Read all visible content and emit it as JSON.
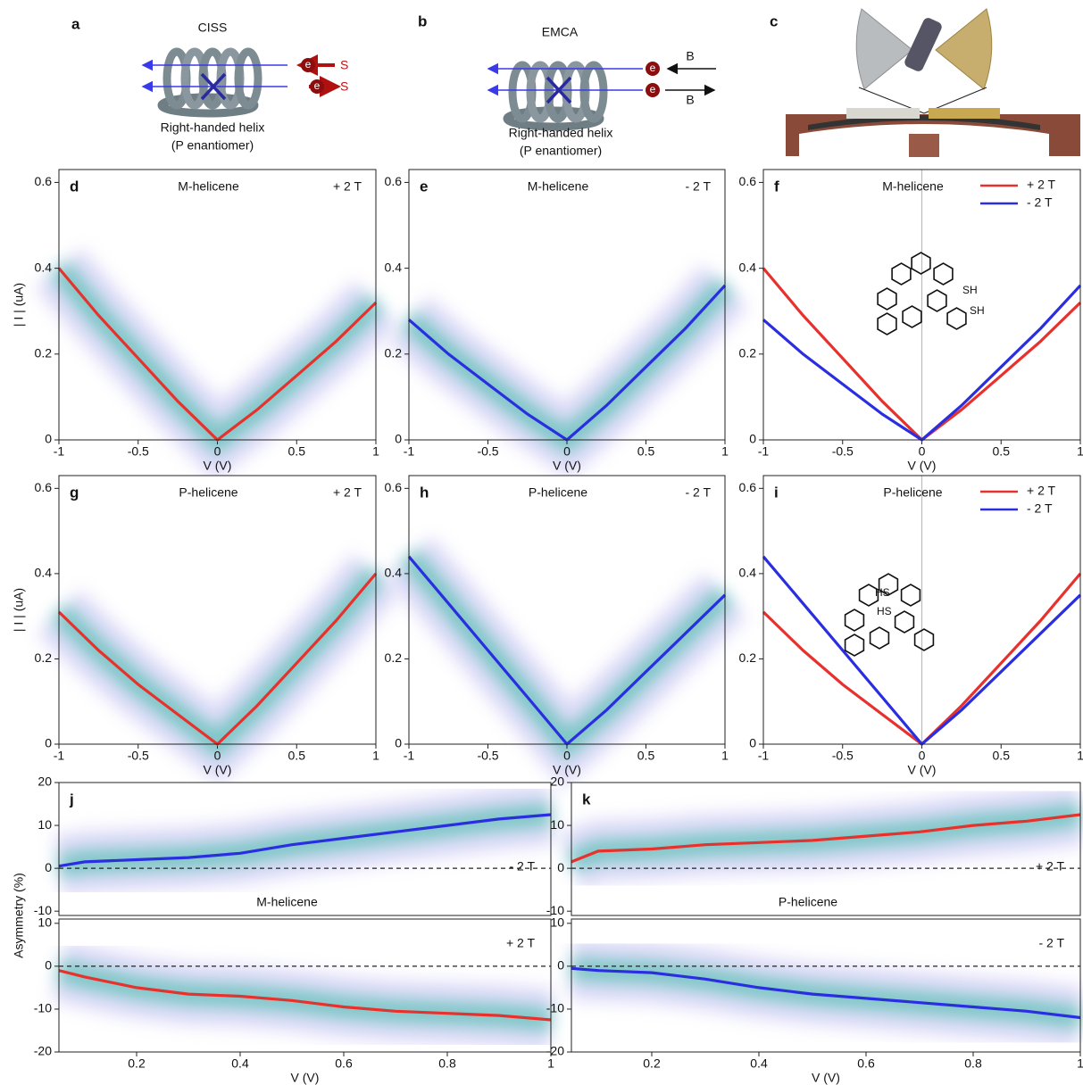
{
  "diagrams": [
    {
      "label": "a",
      "title": "CISS",
      "texts": [
        "e",
        "S",
        "e",
        "S"
      ],
      "caption": [
        "Right-handed helix",
        "(P enantiomer)"
      ]
    },
    {
      "label": "b",
      "title": "EMCA",
      "texts": [
        "e",
        "B",
        "e",
        "B"
      ],
      "caption": [
        "Right-handed helix",
        "(P enantiomer)"
      ]
    },
    {
      "label": "c"
    }
  ],
  "chart_data": [
    {
      "type": "line",
      "label": "d",
      "title": "M-helicene",
      "field": "+ 2 T",
      "xlabel": "V (V)",
      "ylabel": "| I | (uA)",
      "density": true,
      "x": [
        -1,
        -0.75,
        -0.5,
        -0.25,
        0,
        0.25,
        0.5,
        0.75,
        1
      ],
      "xlim": [
        -1,
        1
      ],
      "ylim": [
        0,
        0.63
      ],
      "xticks": [
        -1,
        -0.5,
        0,
        0.5,
        1
      ],
      "yticks": [
        0,
        0.2,
        0.4,
        0.6
      ],
      "series": [
        {
          "color": "#e8312c",
          "values": [
            0.4,
            0.29,
            0.19,
            0.09,
            0,
            0.07,
            0.15,
            0.23,
            0.32
          ]
        }
      ]
    },
    {
      "type": "line",
      "label": "e",
      "title": "M-helicene",
      "field": "- 2 T",
      "xlabel": "V (V)",
      "density": true,
      "x": [
        -1,
        -0.75,
        -0.5,
        -0.25,
        0,
        0.25,
        0.5,
        0.75,
        1
      ],
      "xlim": [
        -1,
        1
      ],
      "ylim": [
        0,
        0.63
      ],
      "xticks": [
        -1,
        -0.5,
        0,
        0.5,
        1
      ],
      "yticks": [
        0,
        0.2,
        0.4,
        0.6
      ],
      "series": [
        {
          "color": "#2a2ee0",
          "values": [
            0.28,
            0.2,
            0.13,
            0.06,
            0,
            0.08,
            0.17,
            0.26,
            0.36
          ]
        }
      ]
    },
    {
      "type": "line",
      "label": "f",
      "title": "M-helicene",
      "xlabel": "V (V)",
      "zero_line": "x",
      "legend": "upper right",
      "annotations": [
        "SH",
        "SH"
      ],
      "x": [
        -1,
        -0.75,
        -0.5,
        -0.25,
        0,
        0.25,
        0.5,
        0.75,
        1
      ],
      "xlim": [
        -1,
        1
      ],
      "ylim": [
        0,
        0.63
      ],
      "xticks": [
        -1,
        -0.5,
        0,
        0.5,
        1
      ],
      "yticks": [
        0,
        0.2,
        0.4,
        0.6
      ],
      "series": [
        {
          "name": "+ 2 T",
          "color": "#e8312c",
          "values": [
            0.4,
            0.29,
            0.19,
            0.09,
            0,
            0.07,
            0.15,
            0.23,
            0.32
          ]
        },
        {
          "name": "- 2 T",
          "color": "#2a2ee0",
          "values": [
            0.28,
            0.2,
            0.13,
            0.06,
            0,
            0.08,
            0.17,
            0.26,
            0.36
          ]
        }
      ]
    },
    {
      "type": "line",
      "label": "g",
      "title": "P-helicene",
      "field": "+ 2 T",
      "xlabel": "V (V)",
      "ylabel": "| I | (uA)",
      "density": true,
      "x": [
        -1,
        -0.75,
        -0.5,
        -0.25,
        0,
        0.25,
        0.5,
        0.75,
        1
      ],
      "xlim": [
        -1,
        1
      ],
      "ylim": [
        0,
        0.63
      ],
      "xticks": [
        -1,
        -0.5,
        0,
        0.5,
        1
      ],
      "yticks": [
        0,
        0.2,
        0.4,
        0.6
      ],
      "series": [
        {
          "color": "#e8312c",
          "values": [
            0.31,
            0.22,
            0.14,
            0.07,
            0,
            0.09,
            0.19,
            0.29,
            0.4
          ]
        }
      ]
    },
    {
      "type": "line",
      "label": "h",
      "title": "P-helicene",
      "field": "- 2 T",
      "xlabel": "V (V)",
      "density": true,
      "x": [
        -1,
        -0.75,
        -0.5,
        -0.25,
        0,
        0.25,
        0.5,
        0.75,
        1
      ],
      "xlim": [
        -1,
        1
      ],
      "ylim": [
        0,
        0.63
      ],
      "xticks": [
        -1,
        -0.5,
        0,
        0.5,
        1
      ],
      "yticks": [
        0,
        0.2,
        0.4,
        0.6
      ],
      "series": [
        {
          "color": "#2a2ee0",
          "values": [
            0.44,
            0.33,
            0.22,
            0.11,
            0,
            0.08,
            0.17,
            0.26,
            0.35
          ]
        }
      ]
    },
    {
      "type": "line",
      "label": "i",
      "title": "P-helicene",
      "xlabel": "V (V)",
      "zero_line": "x",
      "legend": "upper right",
      "annotations": [
        "HS",
        "HS"
      ],
      "x": [
        -1,
        -0.75,
        -0.5,
        -0.25,
        0,
        0.25,
        0.5,
        0.75,
        1
      ],
      "xlim": [
        -1,
        1
      ],
      "ylim": [
        0,
        0.63
      ],
      "xticks": [
        -1,
        -0.5,
        0,
        0.5,
        1
      ],
      "yticks": [
        0,
        0.2,
        0.4,
        0.6
      ],
      "series": [
        {
          "name": "+ 2 T",
          "color": "#e8312c",
          "values": [
            0.31,
            0.22,
            0.14,
            0.07,
            0,
            0.09,
            0.19,
            0.29,
            0.4
          ]
        },
        {
          "name": "- 2 T",
          "color": "#2a2ee0",
          "values": [
            0.44,
            0.33,
            0.22,
            0.11,
            0,
            0.08,
            0.17,
            0.26,
            0.35
          ]
        }
      ]
    },
    {
      "type": "line",
      "label": "j",
      "title": "M-helicene",
      "field": "- 2 T",
      "ylabel": "Asymmetry (%)",
      "density": true,
      "zero_line": "y",
      "x": [
        0.05,
        0.1,
        0.2,
        0.3,
        0.4,
        0.5,
        0.6,
        0.7,
        0.8,
        0.9,
        1
      ],
      "xlim": [
        0.05,
        1
      ],
      "ylim": [
        -11,
        20
      ],
      "yticks": [
        -10,
        0,
        10,
        20
      ],
      "series": [
        {
          "color": "#2a2ee0",
          "values": [
            0.5,
            1.5,
            2,
            2.5,
            3.5,
            5.5,
            7,
            8.5,
            10,
            11.5,
            12.5
          ]
        }
      ]
    },
    {
      "type": "line",
      "field": "+ 2 T",
      "xlabel": "V (V)",
      "density": true,
      "zero_line": "y",
      "x": [
        0.05,
        0.1,
        0.2,
        0.3,
        0.4,
        0.5,
        0.6,
        0.7,
        0.8,
        0.9,
        1
      ],
      "xlim": [
        0.05,
        1
      ],
      "ylim": [
        -20,
        11
      ],
      "xticks": [
        0.2,
        0.4,
        0.6,
        0.8,
        1
      ],
      "yticks": [
        -20,
        -10,
        0,
        10
      ],
      "series": [
        {
          "color": "#e8312c",
          "values": [
            -1,
            -2.5,
            -5,
            -6.5,
            -7,
            -8,
            -9.5,
            -10.5,
            -11,
            -11.5,
            -12.5
          ]
        }
      ]
    },
    {
      "type": "line",
      "label": "k",
      "title": "P-helicene",
      "field": "+ 2 T",
      "density": true,
      "zero_line": "y",
      "x": [
        0.05,
        0.1,
        0.2,
        0.3,
        0.4,
        0.5,
        0.6,
        0.7,
        0.8,
        0.9,
        1
      ],
      "xlim": [
        0.05,
        1
      ],
      "ylim": [
        -11,
        20
      ],
      "yticks": [
        -10,
        0,
        10,
        20
      ],
      "series": [
        {
          "color": "#e8312c",
          "values": [
            1.5,
            4,
            4.5,
            5.5,
            6,
            6.5,
            7.5,
            8.5,
            10,
            11,
            12.5
          ]
        }
      ]
    },
    {
      "type": "line",
      "field": "- 2 T",
      "xlabel": "V (V)",
      "density": true,
      "zero_line": "y",
      "x": [
        0.05,
        0.1,
        0.2,
        0.3,
        0.4,
        0.5,
        0.6,
        0.7,
        0.8,
        0.9,
        1
      ],
      "xlim": [
        0.05,
        1
      ],
      "ylim": [
        -20,
        11
      ],
      "xticks": [
        0.2,
        0.4,
        0.6,
        0.8,
        1
      ],
      "yticks": [
        -20,
        -10,
        0,
        10
      ],
      "series": [
        {
          "color": "#2a2ee0",
          "values": [
            -0.5,
            -1,
            -1.5,
            -3,
            -5,
            -6.5,
            -7.5,
            -8.5,
            -9.5,
            -10.5,
            -12
          ]
        }
      ]
    }
  ]
}
